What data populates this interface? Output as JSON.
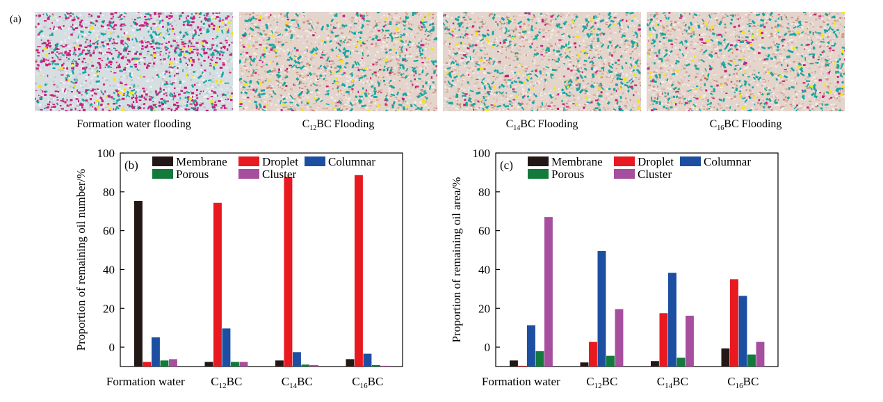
{
  "figure": {
    "panel_a_label": "(a)",
    "photos": [
      {
        "caption": "Formation water flooding",
        "kind": "formation"
      },
      {
        "caption_pre": "C",
        "caption_sub": "12",
        "caption_post": "BC Flooding",
        "kind": "surfactant"
      },
      {
        "caption_pre": "C",
        "caption_sub": "14",
        "caption_post": "BC Flooding",
        "kind": "surfactant"
      },
      {
        "caption_pre": "C",
        "caption_sub": "16",
        "caption_post": "BC Flooding",
        "kind": "surfactant"
      }
    ]
  },
  "colors": {
    "Membrane": "#231815",
    "Droplet": "#e8191f",
    "Columnar": "#1c4fa1",
    "Porous": "#127a3a",
    "Cluster": "#a64f9e"
  },
  "chart_data": [
    {
      "type": "bar",
      "panel_label": "(b)",
      "ylabel": "Proportion of remaining oil number/%",
      "ylim": [
        -10,
        100
      ],
      "yticks": [
        0,
        20,
        40,
        60,
        80,
        100
      ],
      "categories": [
        {
          "pre": "Formation water",
          "sub": "",
          "post": ""
        },
        {
          "pre": "C",
          "sub": "12",
          "post": "BC"
        },
        {
          "pre": "C",
          "sub": "14",
          "post": "BC"
        },
        {
          "pre": "C",
          "sub": "16",
          "post": "BC"
        }
      ],
      "series": [
        {
          "name": "Membrane",
          "values": [
            75.3,
            -7.6,
            -6.9,
            -6.2
          ]
        },
        {
          "name": "Droplet",
          "values": [
            -7.6,
            74.3,
            87.7,
            88.6
          ]
        },
        {
          "name": "Columnar",
          "values": [
            5.0,
            9.6,
            -2.6,
            -3.4
          ]
        },
        {
          "name": "Porous",
          "values": [
            -6.9,
            -7.6,
            -9.0,
            -9.3
          ]
        },
        {
          "name": "Cluster",
          "values": [
            -6.2,
            -7.6,
            -9.3,
            -9.6
          ]
        }
      ],
      "legend": {
        "placement": "top",
        "rows": [
          [
            "Membrane",
            "Droplet",
            "Columnar"
          ],
          [
            "Porous",
            "Cluster"
          ]
        ]
      }
    },
    {
      "type": "bar",
      "panel_label": "(c)",
      "ylabel": "Proportion of remaining oil area/%",
      "ylim": [
        -10,
        100
      ],
      "yticks": [
        0,
        20,
        40,
        60,
        80,
        100
      ],
      "categories": [
        {
          "pre": "Formation water",
          "sub": "",
          "post": ""
        },
        {
          "pre": "C",
          "sub": "12",
          "post": "BC"
        },
        {
          "pre": "C",
          "sub": "14",
          "post": "BC"
        },
        {
          "pre": "C",
          "sub": "16",
          "post": "BC"
        }
      ],
      "series": [
        {
          "name": "Membrane",
          "values": [
            -6.9,
            -7.9,
            -7.2,
            -0.7
          ]
        },
        {
          "name": "Droplet",
          "values": [
            -9.6,
            2.7,
            17.5,
            35.0
          ]
        },
        {
          "name": "Columnar",
          "values": [
            11.3,
            49.5,
            38.3,
            26.4
          ]
        },
        {
          "name": "Porous",
          "values": [
            -2.1,
            -4.5,
            -5.5,
            -3.8
          ]
        },
        {
          "name": "Cluster",
          "values": [
            67.0,
            19.6,
            16.2,
            2.7
          ]
        }
      ],
      "legend": {
        "placement": "top",
        "rows": [
          [
            "Membrane",
            "Droplet",
            "Columnar"
          ],
          [
            "Porous",
            "Cluster"
          ]
        ]
      }
    }
  ]
}
